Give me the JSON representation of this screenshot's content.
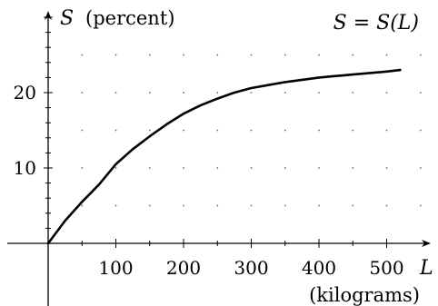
{
  "chart_data": {
    "type": "line",
    "title": "S = S(L)",
    "ylabel": {
      "symbol": "S",
      "unit": "(percent)"
    },
    "xlabel": {
      "symbol": "L",
      "unit": "(kilograms)"
    },
    "xlim": [
      0,
      560
    ],
    "ylim": [
      0,
      31
    ],
    "x_ticks_labeled": [
      100,
      200,
      300,
      400,
      500
    ],
    "y_ticks_labeled": [
      10,
      20
    ],
    "x_tick_step": 50,
    "y_tick_step": 2,
    "grid": "dotted",
    "series": [
      {
        "x": [
          0,
          10,
          25,
          50,
          75,
          100,
          125,
          150,
          175,
          200,
          225,
          250,
          275,
          300,
          325,
          350,
          375,
          400,
          425,
          450,
          475,
          500,
          520
        ],
        "y": [
          0,
          1.2,
          3.0,
          5.5,
          7.8,
          10.5,
          12.5,
          14.2,
          15.8,
          17.2,
          18.3,
          19.2,
          20.0,
          20.6,
          21.0,
          21.4,
          21.7,
          22.0,
          22.2,
          22.4,
          22.6,
          22.8,
          23.0
        ]
      }
    ]
  }
}
